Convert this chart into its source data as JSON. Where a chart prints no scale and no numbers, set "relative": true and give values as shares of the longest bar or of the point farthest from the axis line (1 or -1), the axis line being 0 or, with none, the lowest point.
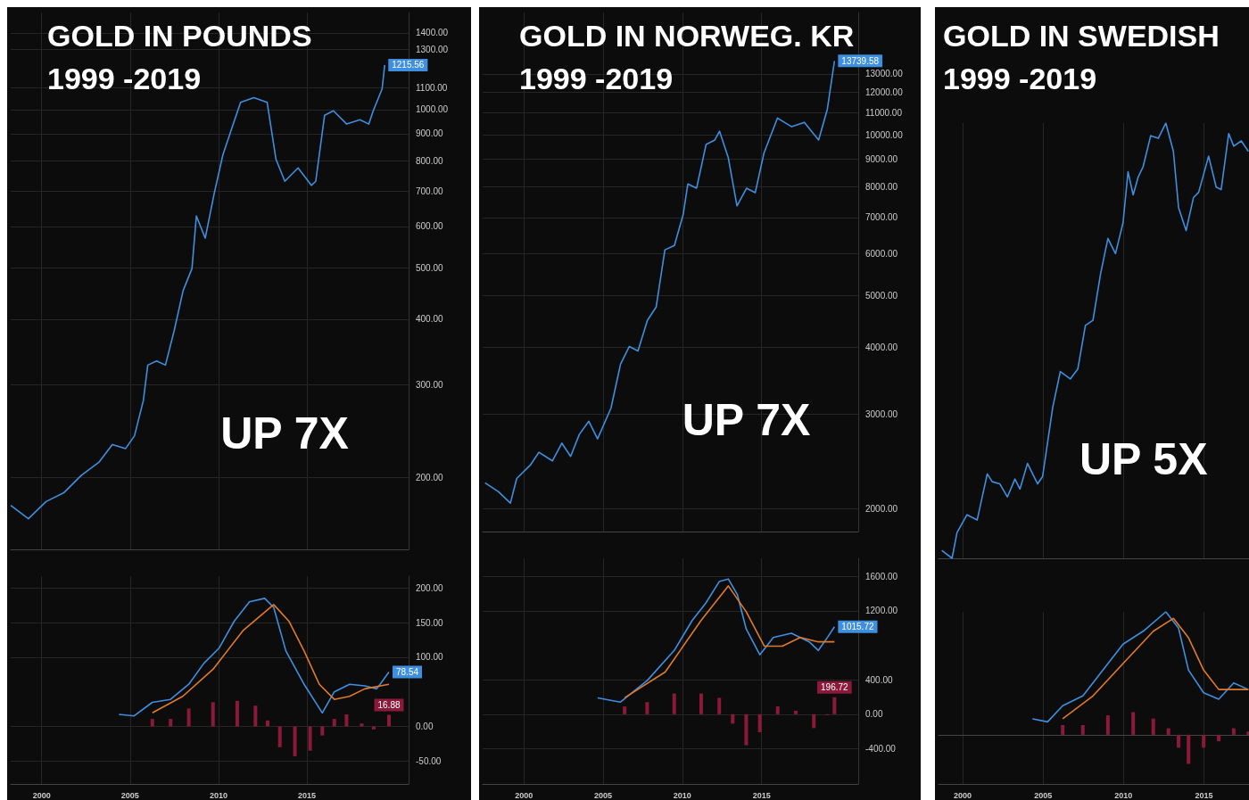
{
  "chart_data": [
    {
      "type": "line",
      "title": "GOLD IN POUNDS",
      "subtitle": "1999 -2019",
      "xlim": [
        1998.25,
        2020.75
      ],
      "xticks": [
        2000,
        2005,
        2010,
        2015
      ],
      "ylim": [
        146,
        1530
      ],
      "log": "y",
      "grid": true,
      "tick_labels": "y",
      "yticks": [
        {
          "value": 200,
          "label": "200.00"
        },
        {
          "value": 300,
          "label": "300.00"
        },
        {
          "value": 400,
          "label": "400.00"
        },
        {
          "value": 500,
          "label": "500.00"
        },
        {
          "value": 600,
          "label": "600.00"
        },
        {
          "value": 700,
          "label": "700.00"
        },
        {
          "value": 800,
          "label": "800.00"
        },
        {
          "value": 900,
          "label": "900.00"
        },
        {
          "value": 1000,
          "label": "1000.00"
        },
        {
          "value": 1100,
          "label": "1100.00"
        },
        {
          "value": 1300,
          "label": "1300.00"
        },
        {
          "value": 1400,
          "label": "1400.00"
        }
      ],
      "series": [
        {
          "color": "#3f8fe0",
          "x": [
            1998.25,
            1999.25,
            2000.25,
            2001.25,
            2002.25,
            2003.25,
            2004,
            2004.75,
            2005.25,
            2005.75,
            2006,
            2006.5,
            2007,
            2007.5,
            2008,
            2008.5,
            2008.75,
            2009.25,
            2009.75,
            2010.25,
            2010.75,
            2011.25,
            2012,
            2012.75,
            2013.25,
            2013.75,
            2014.5,
            2015.25,
            2015.5,
            2016,
            2016.5,
            2017.25,
            2018,
            2018.5,
            2018.75,
            2019.25,
            2019.4
          ],
          "values": [
            177,
            167,
            180,
            187,
            202,
            214,
            231,
            227,
            240,
            280,
            327,
            333,
            327,
            381,
            453,
            499,
            628,
            570,
            691,
            821,
            921,
            1033,
            1054,
            1033,
            805,
            731,
            775,
            718,
            731,
            976,
            995,
            939,
            957,
            939,
            995,
            1095,
            1215.56
          ],
          "value_labels": [
            null,
            null,
            null,
            null,
            null,
            null,
            null,
            null,
            null,
            null,
            null,
            null,
            null,
            null,
            null,
            null,
            null,
            null,
            null,
            null,
            null,
            null,
            null,
            null,
            null,
            null,
            null,
            null,
            null,
            null,
            null,
            null,
            null,
            null,
            null,
            null,
            "1215.56"
          ]
        }
      ],
      "annotations": [
        "UP 7X"
      ]
    },
    {
      "type": "line",
      "title": "GOLD IN NORWEG. KR",
      "subtitle": "1999 -2019",
      "xlim": [
        1997.4,
        2021.1
      ],
      "xticks": [
        2000,
        2005,
        2010,
        2015
      ],
      "ylim": [
        1810,
        16930
      ],
      "log": "y",
      "grid": true,
      "tick_labels": "y",
      "yticks": [
        {
          "value": 2000,
          "label": "2000.00"
        },
        {
          "value": 3000,
          "label": "3000.00"
        },
        {
          "value": 4000,
          "label": "4000.00"
        },
        {
          "value": 5000,
          "label": "5000.00"
        },
        {
          "value": 6000,
          "label": "6000.00"
        },
        {
          "value": 7000,
          "label": "7000.00"
        },
        {
          "value": 8000,
          "label": "8000.00"
        },
        {
          "value": 9000,
          "label": "9000.00"
        },
        {
          "value": 10000,
          "label": "10000.00"
        },
        {
          "value": 11000,
          "label": "11000.00"
        },
        {
          "value": 12000,
          "label": "12000.00"
        },
        {
          "value": 13000,
          "label": "13000.00"
        }
      ],
      "series": [
        {
          "color": "#3f8fe0",
          "x": [
            1997.55,
            1998.4,
            1999.15,
            1999.55,
            2000.4,
            2000.95,
            2001.8,
            2002.4,
            2002.95,
            2003.5,
            2004.1,
            2004.65,
            2005.5,
            2006.1,
            2006.65,
            2007.2,
            2007.8,
            2008.35,
            2008.9,
            2009.5,
            2010.05,
            2010.35,
            2010.9,
            2011.5,
            2012.05,
            2012.35,
            2012.9,
            2013.45,
            2014.05,
            2014.6,
            2015.15,
            2016,
            2016.9,
            2017.7,
            2018.6,
            2019.15,
            2019.6
          ],
          "values": [
            2233,
            2148,
            2046,
            2275,
            2408,
            2547,
            2454,
            2648,
            2502,
            2750,
            2911,
            2698,
            3081,
            3722,
            4016,
            3939,
            4498,
            4762,
            6091,
            6207,
            7085,
            8091,
            7943,
            9590,
            9776,
            10152,
            9057,
            7362,
            7943,
            7790,
            9237,
            10742,
            10351,
            10549,
            9776,
            11160,
            13739.58
          ],
          "value_labels": [
            null,
            null,
            null,
            null,
            null,
            null,
            null,
            null,
            null,
            null,
            null,
            null,
            null,
            null,
            null,
            null,
            null,
            null,
            null,
            null,
            null,
            null,
            null,
            null,
            null,
            null,
            null,
            null,
            null,
            null,
            null,
            null,
            null,
            null,
            null,
            null,
            "13739.58"
          ]
        }
      ],
      "annotations": [
        "UP 7X"
      ]
    },
    {
      "type": "line",
      "title": "GOLD IN SWEDISH",
      "subtitle": "1999 -2019",
      "xlim": [
        1998.5,
        2017.8
      ],
      "xticks": [
        2000,
        2005,
        2010,
        2015
      ],
      "relative": true,
      "grid": true,
      "tick_labels": false,
      "series": [
        {
          "color": "#3f8fe0",
          "x": [
            1998.7,
            1999.34,
            1999.65,
            2000.27,
            2000.9,
            2001.53,
            2001.84,
            2002.31,
            2002.78,
            2003.25,
            2003.56,
            2004.03,
            2004.66,
            2004.97,
            2005.6,
            2006.07,
            2006.69,
            2007.16,
            2007.63,
            2008.1,
            2008.57,
            2009.03,
            2009.5,
            2009.97,
            2010.28,
            2010.6,
            2010.91,
            2011.22,
            2011.69,
            2012.16,
            2012.63,
            2013.1,
            2013.42,
            2013.89,
            2014.35,
            2014.67,
            2015.29,
            2015.76,
            2016.07,
            2016.54,
            2016.85,
            2017.32,
            2017.76
          ],
          "values": [
            0.018,
            0,
            0.059,
            0.1,
            0.088,
            0.194,
            0.176,
            0.171,
            0.141,
            0.182,
            0.159,
            0.218,
            0.171,
            0.188,
            0.347,
            0.429,
            0.412,
            0.435,
            0.535,
            0.547,
            0.653,
            0.735,
            0.7,
            0.771,
            0.888,
            0.835,
            0.876,
            0.9,
            0.971,
            0.965,
            1,
            0.935,
            0.806,
            0.753,
            0.829,
            0.841,
            0.924,
            0.853,
            0.847,
            0.976,
            0.947,
            0.959,
            0.935
          ]
        }
      ],
      "annotations": [
        "UP 5X"
      ]
    },
    {
      "type": "line",
      "xlim": [
        1998.25,
        2020.75
      ],
      "xticks": [
        2000,
        2005,
        2010,
        2015
      ],
      "ylim": [
        -83,
        217
      ],
      "grid": true,
      "yticks": [
        {
          "value": -50,
          "label": "-50.00"
        },
        {
          "value": 0,
          "label": "0.00"
        },
        {
          "value": 100,
          "label": "100.00"
        },
        {
          "value": 150,
          "label": "150.00"
        },
        {
          "value": 200,
          "label": "200.00"
        }
      ],
      "series": [
        {
          "type": "bar",
          "color": "#8b1a3a",
          "x": [
            2006.26,
            2007.29,
            2008.32,
            2009.69,
            2011.06,
            2012.09,
            2012.78,
            2013.47,
            2014.32,
            2015.18,
            2015.87,
            2016.55,
            2017.24,
            2018.1,
            2018.78,
            2019.64
          ],
          "values": [
            10.9,
            10.9,
            26,
            35,
            37,
            30,
            8.7,
            -30,
            -43,
            -35,
            -13,
            10.9,
            17.4,
            4.3,
            -4.3,
            16.88
          ],
          "value_labels": [
            null,
            null,
            null,
            null,
            null,
            null,
            null,
            null,
            null,
            null,
            null,
            null,
            null,
            null,
            null,
            "16.88"
          ]
        },
        {
          "color": "#3f8fe0",
          "x": [
            2004.37,
            2005.23,
            2006.26,
            2007.29,
            2008.32,
            2009.18,
            2010.03,
            2010.89,
            2011.75,
            2012.61,
            2013.12,
            2013.81,
            2014.84,
            2015.87,
            2016.55,
            2017.41,
            2018.27,
            2018.95,
            2019.64
          ],
          "values": [
            17.4,
            15.2,
            34.8,
            39.1,
            60.9,
            91.3,
            113,
            152,
            180,
            185,
            172,
            109,
            60.9,
            19.6,
            50,
            60.9,
            58.7,
            54.3,
            78.54
          ],
          "value_labels": [
            null,
            null,
            null,
            null,
            null,
            null,
            null,
            null,
            null,
            null,
            null,
            null,
            null,
            null,
            null,
            null,
            null,
            null,
            "78.54"
          ]
        },
        {
          "color": "#e07a2a",
          "x": [
            2006.26,
            2007.98,
            2009.69,
            2011.41,
            2013.12,
            2013.98,
            2014.84,
            2015.7,
            2016.55,
            2017.41,
            2018.27,
            2019.64
          ],
          "values": [
            19.6,
            43.5,
            82.6,
            139,
            176,
            152,
            109,
            60.9,
            39.1,
            43.5,
            54.3,
            60.9
          ]
        }
      ]
    },
    {
      "type": "line",
      "xlim": [
        1997.4,
        2021.1
      ],
      "xticks": [
        2000,
        2005,
        2010,
        2015
      ],
      "ylim": [
        -810,
        1810
      ],
      "grid": true,
      "yticks": [
        {
          "value": -400,
          "label": "-400.00"
        },
        {
          "value": 0,
          "label": "0.00"
        },
        {
          "value": 400,
          "label": "400.00"
        },
        {
          "value": 1200,
          "label": "1200.00"
        },
        {
          "value": 1600,
          "label": "1600.00"
        }
      ],
      "series": [
        {
          "type": "bar",
          "color": "#8b1a3a",
          "x": [
            2006.36,
            2007.78,
            2009.49,
            2011.19,
            2012.33,
            2013.18,
            2014.03,
            2014.89,
            2016.02,
            2017.16,
            2018.3,
            2019.15,
            2019.6
          ],
          "values": [
            90,
            140,
            240,
            240,
            190,
            -110,
            -360,
            -210,
            90,
            40,
            -160,
            -10,
            196.72
          ],
          "value_labels": [
            null,
            null,
            null,
            null,
            null,
            null,
            null,
            null,
            null,
            null,
            null,
            null,
            "196.72"
          ]
        },
        {
          "color": "#3f8fe0",
          "x": [
            2004.66,
            2006.08,
            2007.78,
            2009.49,
            2010.63,
            2011.48,
            2012.33,
            2012.9,
            2013.47,
            2014.03,
            2014.89,
            2015.74,
            2016.88,
            2018.01,
            2018.58,
            2019.15,
            2019.6
          ],
          "values": [
            190,
            140,
            390,
            740,
            1090,
            1290,
            1540,
            1570,
            1390,
            990,
            690,
            890,
            940,
            840,
            740,
            890,
            1015.72
          ],
          "value_labels": [
            null,
            null,
            null,
            null,
            null,
            null,
            null,
            null,
            null,
            null,
            null,
            null,
            null,
            null,
            null,
            null,
            "1015.72"
          ]
        },
        {
          "color": "#e07a2a",
          "x": [
            2006.36,
            2008.92,
            2011.19,
            2012.9,
            2014.03,
            2015.17,
            2016.31,
            2017.44,
            2018.58,
            2019.6
          ],
          "values": [
            190,
            490,
            1090,
            1490,
            1190,
            790,
            790,
            890,
            840,
            840
          ]
        }
      ]
    },
    {
      "type": "line",
      "xlim": [
        1998.5,
        2017.8
      ],
      "xticks": [
        2000,
        2005,
        2010,
        2015
      ],
      "relative": true,
      "grid": true,
      "tick_labels": "x",
      "series": [
        {
          "type": "bar",
          "color": "#8b1a3a",
          "x": [
            2006.22,
            2007.47,
            2009.03,
            2010.6,
            2011.85,
            2012.79,
            2013.42,
            2014.04,
            2014.98,
            2015.92,
            2016.85,
            2017.76
          ],
          "values": [
            0.079,
            0.079,
            0.158,
            0.184,
            0.132,
            0.053,
            -0.105,
            -0.237,
            -0.105,
            -0.053,
            0.053,
            0.026
          ]
        },
        {
          "color": "#3f8fe0",
          "x": [
            2004.34,
            2005.28,
            2006.22,
            2007.47,
            2008.72,
            2009.97,
            2011.22,
            2012.63,
            2013.42,
            2014.04,
            2014.98,
            2015.92,
            2016.85,
            2017.76
          ],
          "values": [
            0.13,
            0.105,
            0.237,
            0.316,
            0.526,
            0.737,
            0.842,
            1,
            0.868,
            0.526,
            0.342,
            0.289,
            0.421,
            0.368
          ]
        },
        {
          "color": "#e07a2a",
          "x": [
            2006.22,
            2008.1,
            2009.97,
            2011.85,
            2013.1,
            2014.04,
            2014.98,
            2015.92,
            2016.85,
            2017.76
          ],
          "values": [
            0.13,
            0.316,
            0.579,
            0.842,
            0.947,
            0.789,
            0.526,
            0.368,
            0.368,
            0.368
          ]
        }
      ]
    }
  ]
}
